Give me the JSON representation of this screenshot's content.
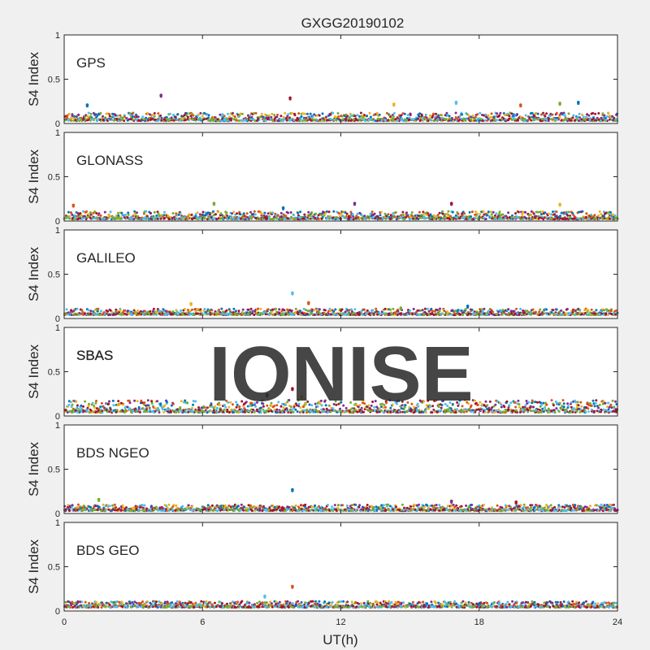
{
  "figure": {
    "title": "GXGG20190102",
    "xlabel": "UT(h)",
    "watermark": "IONISE"
  },
  "colors": {
    "figure_bg": "#f0f0f0",
    "axes_bg": "#ffffff",
    "axis": "#262626",
    "watermark": "#e6e6e6",
    "series_palette": [
      "#0072BD",
      "#D95319",
      "#EDB120",
      "#7E2F8E",
      "#77AC30",
      "#4DBEEE",
      "#A2142F"
    ]
  },
  "chart_data": [
    {
      "type": "scatter",
      "panel_label": "GPS",
      "ylabel": "S4 Index",
      "xlim": [
        0,
        24
      ],
      "ylim": [
        0,
        1
      ],
      "xticks": [
        "0",
        "6",
        "12",
        "18",
        "24"
      ],
      "yticks": [
        "0",
        "0.5",
        "1"
      ],
      "grid": false,
      "baseline_range": [
        0.03,
        0.12
      ],
      "spikes": [
        {
          "x": 1.0,
          "y": 0.21
        },
        {
          "x": 4.2,
          "y": 0.32
        },
        {
          "x": 9.8,
          "y": 0.29
        },
        {
          "x": 14.3,
          "y": 0.22
        },
        {
          "x": 17.0,
          "y": 0.24
        },
        {
          "x": 19.8,
          "y": 0.21
        },
        {
          "x": 21.5,
          "y": 0.23
        },
        {
          "x": 22.3,
          "y": 0.24
        }
      ]
    },
    {
      "type": "scatter",
      "panel_label": "GLONASS",
      "ylabel": "S4 Index",
      "xlim": [
        0,
        24
      ],
      "ylim": [
        0,
        1
      ],
      "xticks": [
        "0",
        "6",
        "12",
        "18",
        "24"
      ],
      "yticks": [
        "0",
        "0.5",
        "1"
      ],
      "grid": false,
      "baseline_range": [
        0.02,
        0.11
      ],
      "spikes": [
        {
          "x": 0.4,
          "y": 0.18
        },
        {
          "x": 6.5,
          "y": 0.2
        },
        {
          "x": 9.5,
          "y": 0.15
        },
        {
          "x": 12.6,
          "y": 0.2
        },
        {
          "x": 16.8,
          "y": 0.2
        },
        {
          "x": 21.5,
          "y": 0.19
        }
      ]
    },
    {
      "type": "scatter",
      "panel_label": "GALILEO",
      "ylabel": "S4 Index",
      "xlim": [
        0,
        24
      ],
      "ylim": [
        0,
        1
      ],
      "xticks": [
        "0",
        "6",
        "12",
        "18",
        "24"
      ],
      "yticks": [
        "0",
        "0.5",
        "1"
      ],
      "grid": false,
      "baseline_range": [
        0.04,
        0.11
      ],
      "spikes": [
        {
          "x": 5.5,
          "y": 0.17
        },
        {
          "x": 9.9,
          "y": 0.29
        },
        {
          "x": 10.6,
          "y": 0.18
        },
        {
          "x": 14.6,
          "y": 0.12
        },
        {
          "x": 17.5,
          "y": 0.14
        }
      ]
    },
    {
      "type": "scatter",
      "panel_label": "SBAS",
      "ylabel": "S4 Index",
      "xlim": [
        0,
        24
      ],
      "ylim": [
        0,
        1
      ],
      "xticks": [
        "0",
        "6",
        "12",
        "18",
        "24"
      ],
      "yticks": [
        "0",
        "0.5",
        "1"
      ],
      "grid": false,
      "baseline_range": [
        0.04,
        0.18
      ],
      "spikes": [
        {
          "x": 8.8,
          "y": 0.24
        },
        {
          "x": 9.9,
          "y": 0.31
        },
        {
          "x": 10.3,
          "y": 0.22
        }
      ]
    },
    {
      "type": "scatter",
      "panel_label": "BDS NGEO",
      "ylabel": "S4 Index",
      "xlim": [
        0,
        24
      ],
      "ylim": [
        0,
        1
      ],
      "xticks": [
        "0",
        "6",
        "12",
        "18",
        "24"
      ],
      "yticks": [
        "0",
        "0.5",
        "1"
      ],
      "grid": false,
      "baseline_range": [
        0.03,
        0.1
      ],
      "spikes": [
        {
          "x": 1.5,
          "y": 0.16
        },
        {
          "x": 9.9,
          "y": 0.27
        },
        {
          "x": 16.8,
          "y": 0.14
        },
        {
          "x": 19.6,
          "y": 0.13
        }
      ]
    },
    {
      "type": "scatter",
      "panel_label": "BDS GEO",
      "ylabel": "S4 Index",
      "xlim": [
        0,
        24
      ],
      "ylim": [
        0,
        1
      ],
      "xticks": [
        "0",
        "6",
        "12",
        "18",
        "24"
      ],
      "yticks": [
        "0",
        "0.5",
        "1"
      ],
      "grid": false,
      "baseline_range": [
        0.04,
        0.11
      ],
      "spikes": [
        {
          "x": 8.7,
          "y": 0.17
        },
        {
          "x": 9.9,
          "y": 0.28
        }
      ]
    }
  ]
}
